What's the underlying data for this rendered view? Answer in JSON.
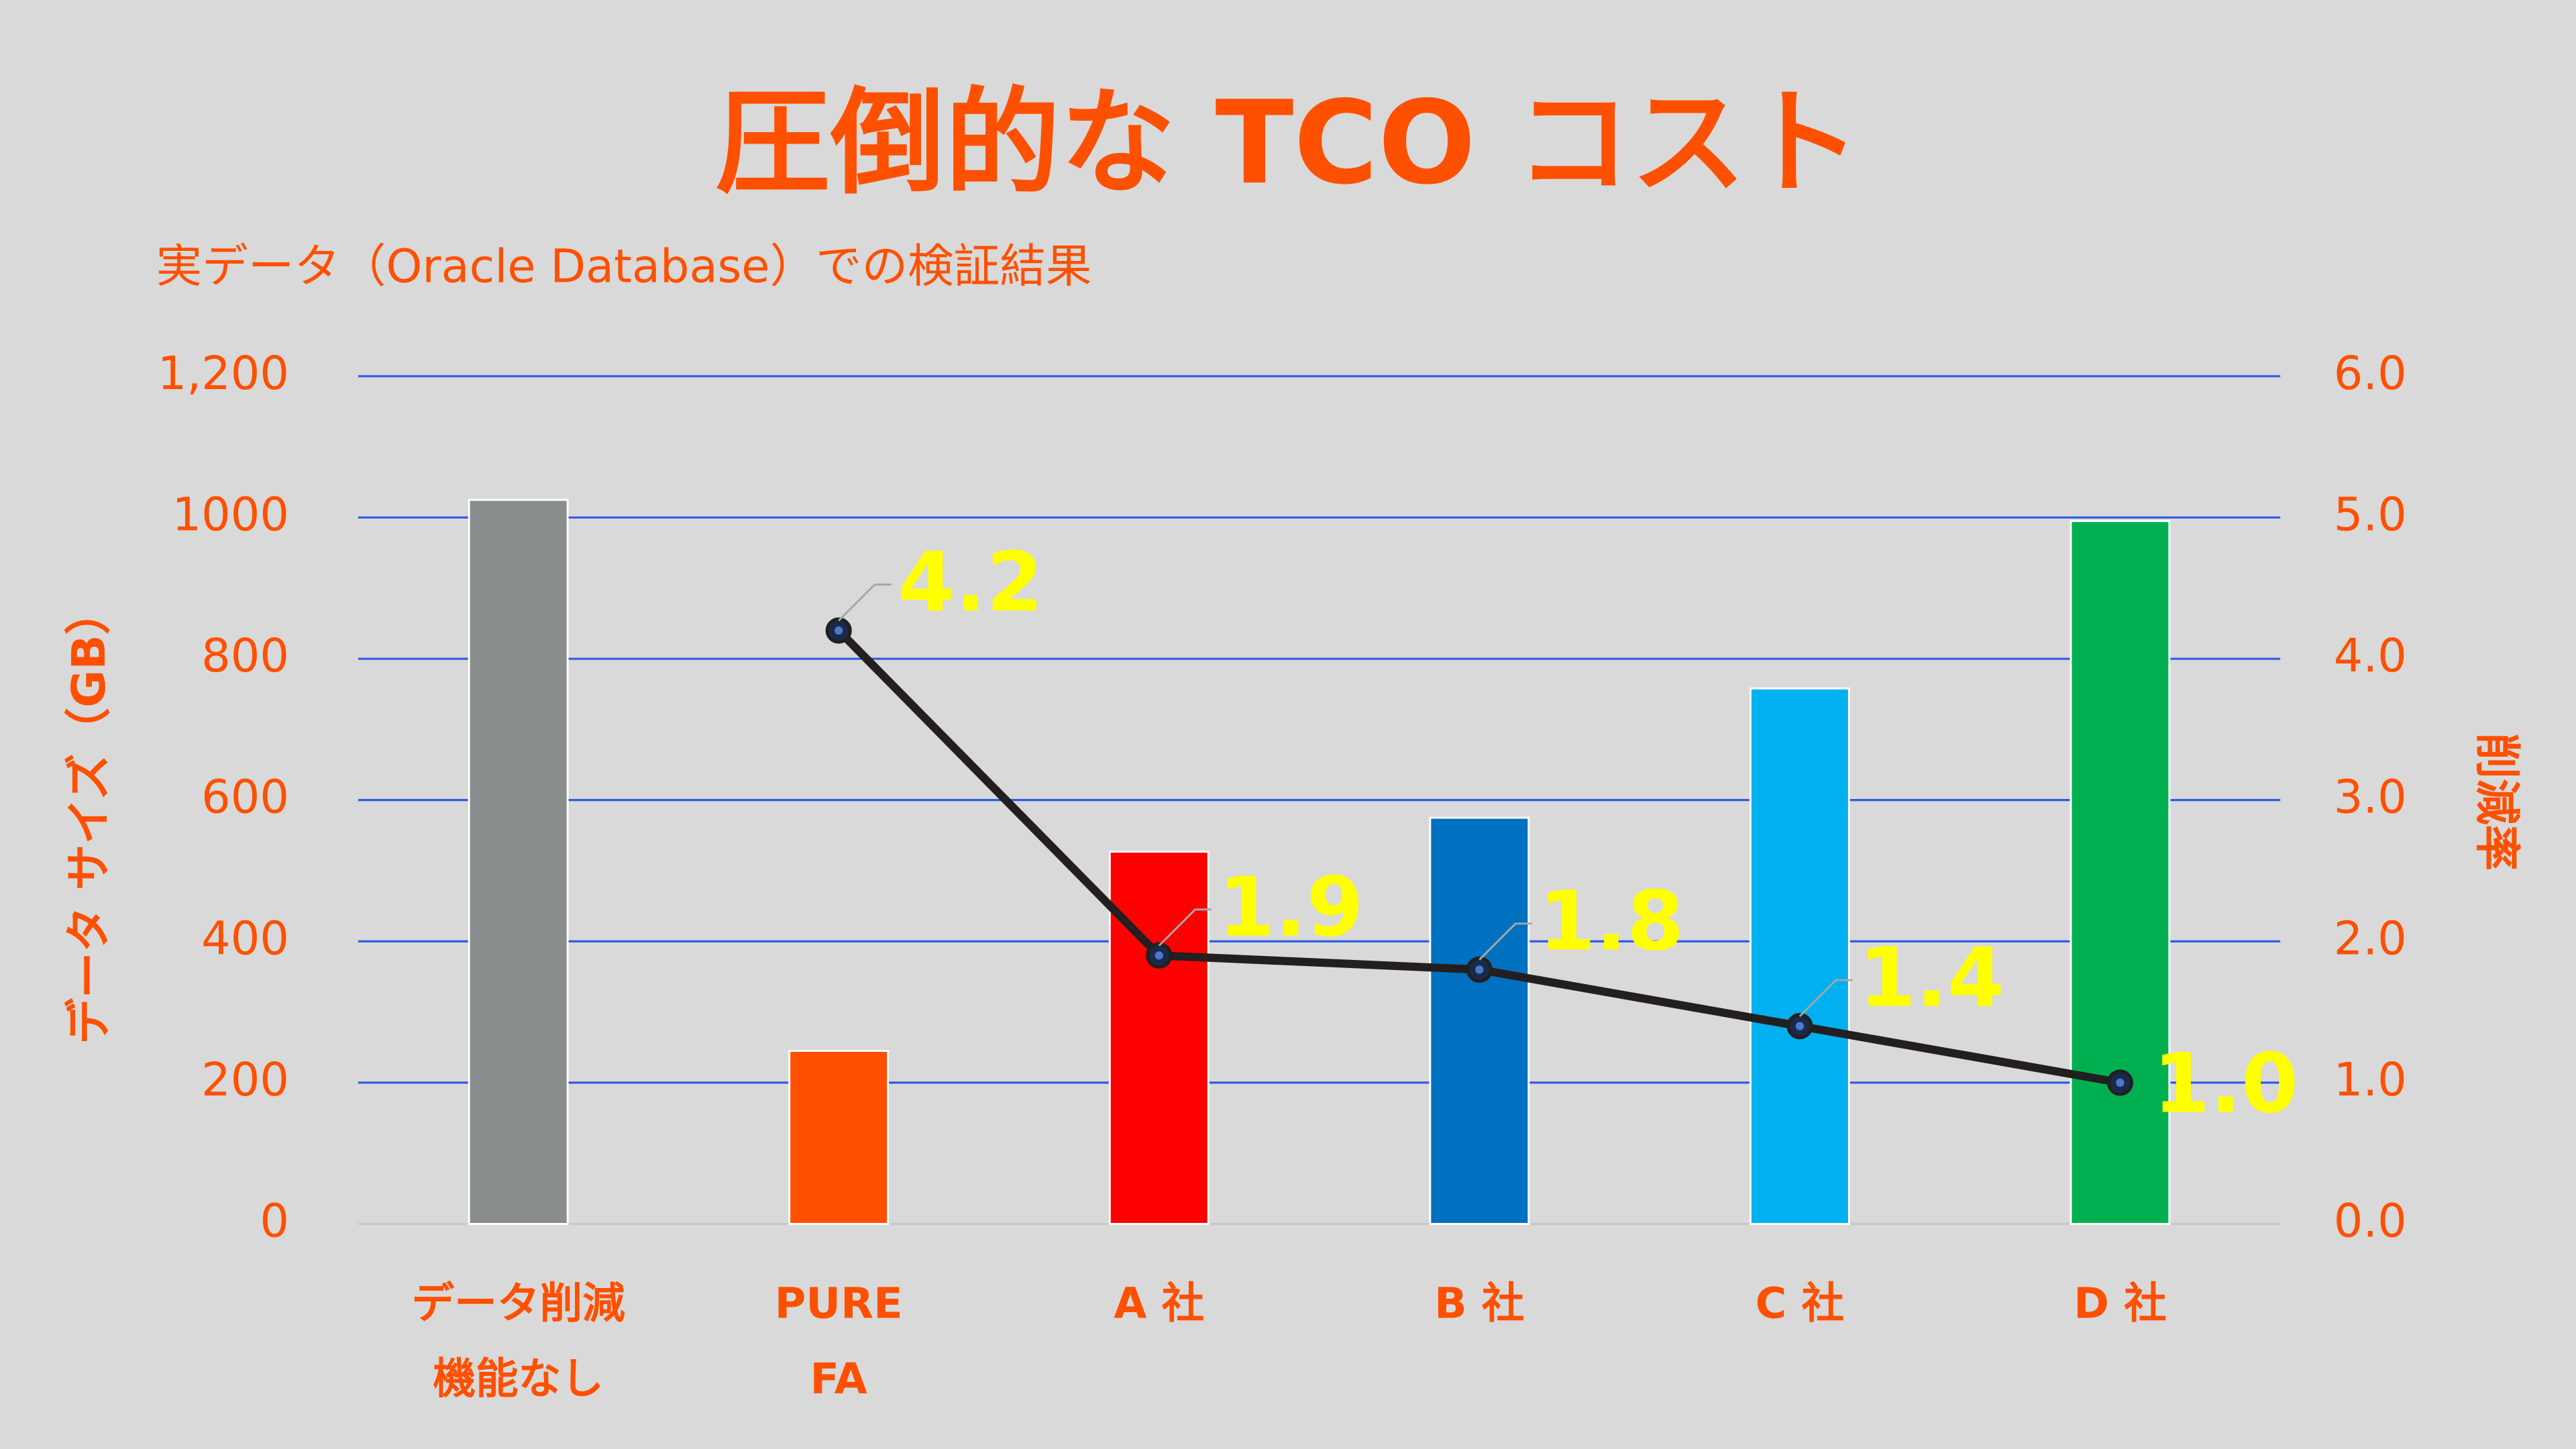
{
  "chart_data": {
    "type": "bar",
    "title": "圧倒的な TCO コスト",
    "subtitle": "実データ（Oracle Database）での検証結果",
    "ylabel": "データ サイズ（GB）",
    "y2label": "削減率",
    "categories": [
      [
        "データ削減",
        "機能なし"
      ],
      [
        "PURE",
        "FA"
      ],
      [
        "A 社"
      ],
      [
        "B 社"
      ],
      [
        "C 社"
      ],
      [
        "D 社"
      ]
    ],
    "series": [
      {
        "type": "bar",
        "values": [
          1025,
          245,
          527,
          575,
          758,
          995
        ],
        "colors": [
          "#898d8e",
          "#ff5000",
          "#ff0000",
          "#0070c0",
          "#00b0f0",
          "#00b050"
        ]
      },
      {
        "type": "line",
        "axis": "y2",
        "color": "#231f20",
        "values": [
          null,
          4.2,
          1.9,
          1.8,
          1.4,
          1.0
        ],
        "value_labels": [
          null,
          "4.2",
          "1.9",
          "1.8",
          "1.4",
          "1.0"
        ]
      }
    ],
    "ylim": [
      0,
      1200
    ],
    "yticks": [
      0,
      200,
      400,
      600,
      800,
      1000,
      {
        "value": 1200,
        "label": "1,200"
      }
    ],
    "y2lim": [
      0,
      6
    ],
    "y2ticks": [
      {
        "value": 0,
        "label": "0.0"
      },
      {
        "value": 1,
        "label": "1.0"
      },
      {
        "value": 2,
        "label": "2.0"
      },
      {
        "value": 3,
        "label": "3.0"
      },
      {
        "value": 4,
        "label": "4.0"
      },
      {
        "value": 5,
        "label": "5.0"
      },
      {
        "value": 6,
        "label": "6.0"
      }
    ],
    "grid": true
  }
}
